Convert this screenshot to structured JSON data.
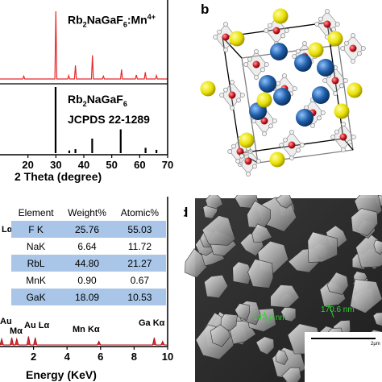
{
  "panel_b": {
    "letter": "b"
  },
  "panel_d": {
    "letter": "d",
    "sem": {
      "labels": [
        "143.4 nm",
        "170.6 nm"
      ],
      "scale_label": "2μm"
    }
  },
  "xrd": {
    "top_label": {
      "formula_main": "Rb",
      "sub1": "2",
      "mid": "NaGaF",
      "sub2": "6",
      "suffix": ":Mn",
      "sup": "4+"
    },
    "bottom_label": {
      "formula_main": "Rb",
      "sub1": "2",
      "mid": "NaGaF",
      "sub2": "6",
      "line2": "JCPDS 22-1289"
    },
    "xlabel": "2 Theta (degree)",
    "ticks": [
      "20",
      "30",
      "40",
      "50",
      "60",
      "70"
    ]
  },
  "eds": {
    "table": {
      "headers": [
        "Element",
        "Weight%",
        "Atomic%"
      ],
      "rows": [
        [
          "F K",
          "25.76",
          "55.03"
        ],
        [
          "NaK",
          "6.64",
          "11.72"
        ],
        [
          "RbL",
          "44.80",
          "21.27"
        ],
        [
          "MnK",
          "0.90",
          "0.67"
        ],
        [
          "GaK",
          "18.09",
          "10.53"
        ]
      ]
    },
    "left_peak": "Lα",
    "peaks": [
      "Au",
      "Mα",
      "Au Lα",
      "Mn Kα",
      "Ga Kα"
    ],
    "xlabel": "Energy (KeV)",
    "ticks": [
      "2",
      "4",
      "6",
      "8",
      "10"
    ]
  },
  "chart_data": [
    {
      "type": "line",
      "xlabel": "2 Theta (degree)",
      "xlim": [
        10,
        70
      ],
      "series": [
        {
          "x": [
            18.5,
            30.0,
            34.6,
            37.0,
            43.1,
            47.0,
            53.5,
            58.8,
            62.0,
            66.0
          ],
          "values": [
            0.04,
            1.0,
            0.05,
            0.2,
            0.35,
            0.04,
            0.14,
            0.06,
            0.1,
            0.05
          ]
        },
        {
          "x": [
            29.9,
            34.8,
            37.0,
            43.0,
            53.2,
            62.1,
            66.0
          ],
          "values": [
            1.0,
            0.04,
            0.06,
            0.22,
            0.36,
            0.08,
            0.05
          ]
        }
      ]
    },
    {
      "type": "line",
      "xlabel": "Energy (KeV)",
      "xlim": [
        0,
        10
      ],
      "series": [
        {
          "x": [
            0.1,
            0.7,
            1.0,
            1.7,
            2.1,
            5.9,
            9.2,
            9.7
          ],
          "values": [
            0.25,
            0.3,
            0.25,
            0.35,
            0.3,
            0.15,
            0.3,
            0.15
          ]
        }
      ]
    }
  ]
}
